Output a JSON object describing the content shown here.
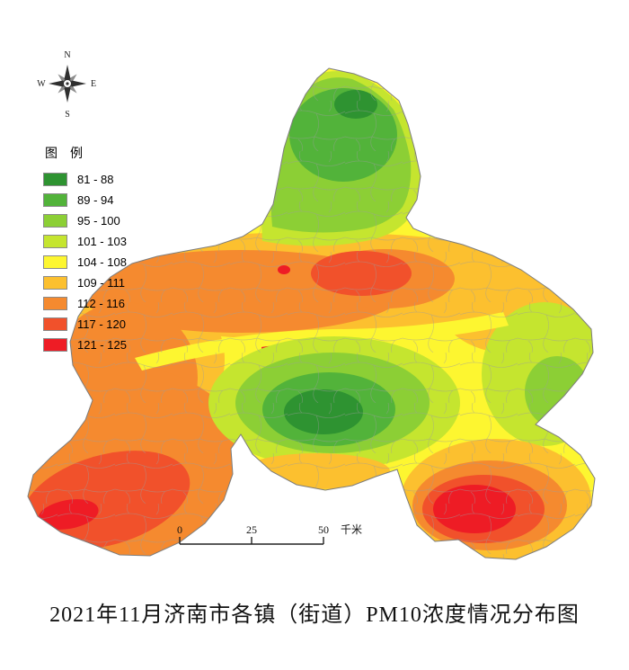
{
  "title": "2021年11月济南市各镇（街道）PM10浓度情况分布图",
  "compass": {
    "n": "N",
    "e": "E",
    "s": "S",
    "w": "W"
  },
  "legend": {
    "title": "图　例",
    "items": [
      {
        "range": "81 - 88",
        "color": "#2e9331"
      },
      {
        "range": "89 - 94",
        "color": "#52b33a"
      },
      {
        "range": "95 - 100",
        "color": "#8ccf35"
      },
      {
        "range": "101 - 103",
        "color": "#c5e52f"
      },
      {
        "range": "104 - 108",
        "color": "#fdf630"
      },
      {
        "range": "109 - 111",
        "color": "#fcc02f"
      },
      {
        "range": "112 - 116",
        "color": "#f58a2f"
      },
      {
        "range": "117 - 120",
        "color": "#f1512b"
      },
      {
        "range": "121 - 125",
        "color": "#ee1c25"
      }
    ]
  },
  "scalebar": {
    "ticks": [
      "0",
      "25",
      "50"
    ],
    "unit": "千米"
  },
  "map": {
    "boundary_color": "#7d7d7d",
    "inner_boundary_color": "#9b9b9b"
  }
}
